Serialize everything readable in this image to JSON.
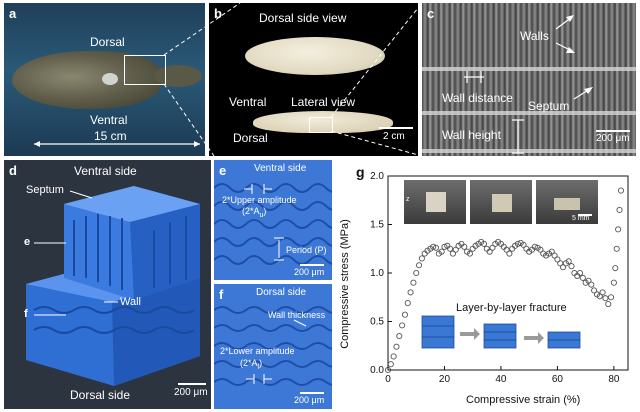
{
  "panels": {
    "a": {
      "label": "a",
      "dorsal": "Dorsal",
      "ventral": "Ventral",
      "length": "15 cm"
    },
    "b": {
      "label": "b",
      "dorsal_view": "Dorsal side view",
      "ventral": "Ventral",
      "lateral_view": "Lateral view",
      "dorsal": "Dorsal",
      "scale": "2 cm"
    },
    "c": {
      "label": "c",
      "walls": "Walls",
      "wall_distance": "Wall distance",
      "septum": "Septum",
      "wall_height": "Wall height",
      "scale": "200 μm"
    },
    "d": {
      "label": "d",
      "ventral_side": "Ventral side",
      "septum": "Septum",
      "e": "e",
      "f": "f",
      "wall": "Wall",
      "dorsal_side": "Dorsal side",
      "scale": "200 μm"
    },
    "e": {
      "label": "e",
      "title": "Ventral side",
      "upper_amp": "2*Upper amplitude",
      "upper_amp_sym": "(2*A",
      "upper_amp_sub": "u",
      "period": "Period (P)",
      "scale": "200 μm"
    },
    "f": {
      "label": "f",
      "title": "Dorsal side",
      "wall_thickness": "Wall thickness",
      "lower_amp": "2*Lower amplitude",
      "lower_amp_sym": "(2*A",
      "lower_amp_sub": "l",
      "scale": "200 μm"
    },
    "g": {
      "label": "g",
      "ylabel": "Compressive stress (MPa)",
      "xlabel": "Compressive strain (%)",
      "annotation": "Layer-by-layer fracture",
      "inset_scale": "5 mm",
      "inset_axis": "z"
    }
  },
  "chart_data": {
    "type": "scatter",
    "xlabel": "Compressive strain (%)",
    "ylabel": "Compressive stress (MPa)",
    "xlim": [
      0,
      85
    ],
    "ylim": [
      0,
      2.0
    ],
    "xticks": [
      0,
      20,
      40,
      60,
      80
    ],
    "yticks": [
      0.0,
      0.5,
      1.0,
      1.5,
      2.0
    ],
    "grid": false,
    "marker": "open-circle",
    "x": [
      0,
      1,
      2,
      3,
      4,
      5,
      6,
      7,
      8,
      9,
      10,
      11,
      12,
      13,
      14,
      15,
      16,
      17,
      18,
      19,
      20,
      21,
      22,
      23,
      24,
      25,
      26,
      27,
      28,
      29,
      30,
      31,
      32,
      33,
      34,
      35,
      36,
      37,
      38,
      39,
      40,
      41,
      42,
      43,
      44,
      45,
      46,
      47,
      48,
      49,
      50,
      51,
      52,
      53,
      54,
      55,
      56,
      57,
      58,
      59,
      60,
      61,
      62,
      63,
      64,
      65,
      66,
      67,
      68,
      69,
      70,
      71,
      72,
      73,
      74,
      75,
      76,
      77,
      78,
      79,
      80,
      80.5,
      81,
      81.5,
      82,
      82.5
    ],
    "y": [
      0,
      0.06,
      0.14,
      0.24,
      0.35,
      0.46,
      0.57,
      0.69,
      0.8,
      0.9,
      1.0,
      1.08,
      1.15,
      1.2,
      1.23,
      1.25,
      1.27,
      1.26,
      1.2,
      1.22,
      1.27,
      1.28,
      1.25,
      1.2,
      1.24,
      1.28,
      1.3,
      1.27,
      1.22,
      1.2,
      1.25,
      1.28,
      1.3,
      1.32,
      1.3,
      1.25,
      1.22,
      1.26,
      1.3,
      1.32,
      1.3,
      1.27,
      1.24,
      1.2,
      1.25,
      1.28,
      1.3,
      1.31,
      1.29,
      1.25,
      1.22,
      1.24,
      1.27,
      1.26,
      1.24,
      1.2,
      1.18,
      1.2,
      1.22,
      1.18,
      1.14,
      1.1,
      1.06,
      1.1,
      1.12,
      1.07,
      1.0,
      0.97,
      1.0,
      0.95,
      0.9,
      0.92,
      0.88,
      0.82,
      0.78,
      0.76,
      0.8,
      0.74,
      0.68,
      0.75,
      0.9,
      1.05,
      1.25,
      1.45,
      1.65,
      1.85
    ]
  }
}
